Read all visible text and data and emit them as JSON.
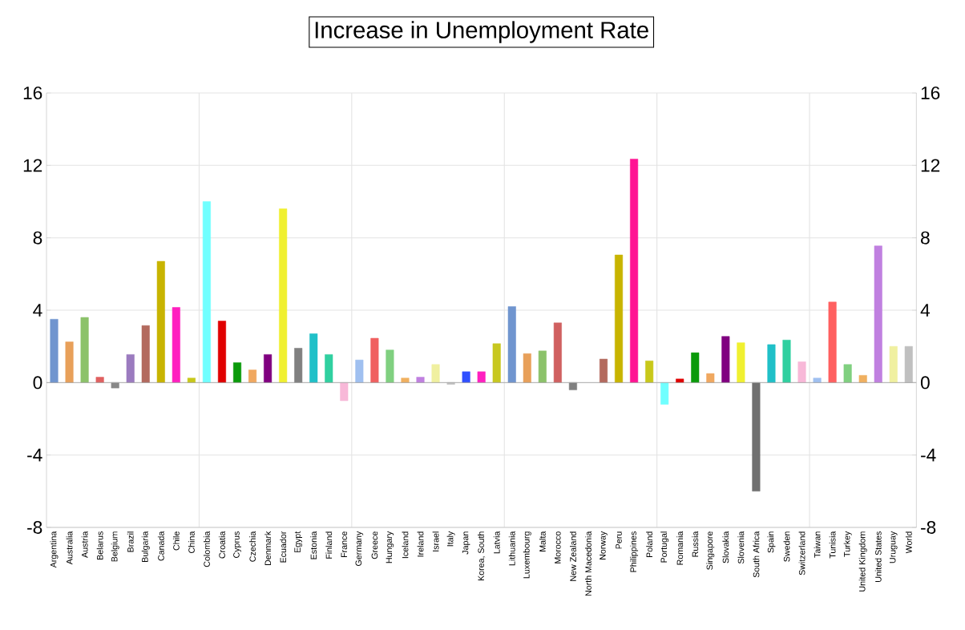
{
  "chart_data": {
    "type": "bar",
    "title": "Increase in Unemployment Rate",
    "categories": [
      "Argentina",
      "Australia",
      "Austria",
      "Belarus",
      "Belgium",
      "Brazil",
      "Bulgaria",
      "Canada",
      "Chile",
      "China",
      "Colombia",
      "Croatia",
      "Cyprus",
      "Czechia",
      "Denmark",
      "Ecuador",
      "Egypt",
      "Estonia",
      "Finland",
      "France",
      "Germany",
      "Greece",
      "Hungary",
      "Iceland",
      "Ireland",
      "Israel",
      "Italy",
      "Japan",
      "Korea, South",
      "Latvia",
      "Lithuania",
      "Luxembourg",
      "Malta",
      "Morocco",
      "New Zealand",
      "North Macedonia",
      "Norway",
      "Peru",
      "Philippines",
      "Poland",
      "Portugal",
      "Romania",
      "Russia",
      "Singapore",
      "Slovakia",
      "Slovenia",
      "South Africa",
      "Spain",
      "Sweden",
      "Switzerland",
      "Taiwan",
      "Tunisia",
      "Turkey",
      "United Kingdom",
      "United States",
      "Uruguay",
      "World"
    ],
    "values": [
      3.5,
      2.25,
      3.6,
      0.3,
      -0.3,
      1.55,
      3.15,
      6.7,
      4.15,
      0.25,
      10.0,
      3.4,
      1.1,
      0.7,
      1.55,
      9.6,
      1.9,
      2.7,
      1.55,
      -1.0,
      1.25,
      2.45,
      1.8,
      0.25,
      0.3,
      1.0,
      -0.1,
      0.6,
      0.6,
      2.15,
      4.2,
      1.6,
      1.75,
      3.3,
      -0.4,
      null,
      1.3,
      7.05,
      12.35,
      1.2,
      -1.2,
      0.2,
      1.65,
      0.5,
      2.55,
      2.2,
      -6.0,
      2.1,
      2.35,
      1.15,
      0.25,
      4.45,
      1.0,
      0.4,
      7.55,
      2.0,
      2.0
    ],
    "colors": [
      "#7095cf",
      "#e8a05a",
      "#8cc26a",
      "#e06060",
      "#888888",
      "#9b7bbf",
      "#b36a5e",
      "#c8b400",
      "#ff1fbf",
      "#c8c81a",
      "#70ffff",
      "#e00000",
      "#0a9a0a",
      "#f0a860",
      "#800080",
      "#f0f030",
      "#808080",
      "#20c0c8",
      "#30d0a0",
      "#f8b8d8",
      "#a0c0f0",
      "#f06060",
      "#80d080",
      "#f0b060",
      "#c080e0",
      "#f0f0a0",
      "#c0c0c0",
      "#3050ff",
      "#ff20c0",
      "#c8c820",
      "#7095cf",
      "#e8a05a",
      "#8cc26a",
      "#d06060",
      "#808080",
      "#9b7bbf",
      "#b36a5e",
      "#c8b400",
      "#ff1493",
      "#c8c81a",
      "#70ffff",
      "#e00000",
      "#0a9a0a",
      "#f0a860",
      "#800080",
      "#f0f030",
      "#707070",
      "#20c0c8",
      "#30d0a0",
      "#f8b8d8",
      "#a0c0f0",
      "#ff6060",
      "#80d080",
      "#f0b060",
      "#c080e0",
      "#f0f0a0",
      "#c0c0c0"
    ],
    "ylim": [
      -8,
      16
    ],
    "yticks": [
      -8,
      -4,
      0,
      4,
      8,
      12,
      16
    ],
    "y2lim": [
      -8,
      16
    ],
    "y2ticks": [
      -8,
      -4,
      0,
      4,
      8,
      12,
      16
    ],
    "grid": true
  }
}
